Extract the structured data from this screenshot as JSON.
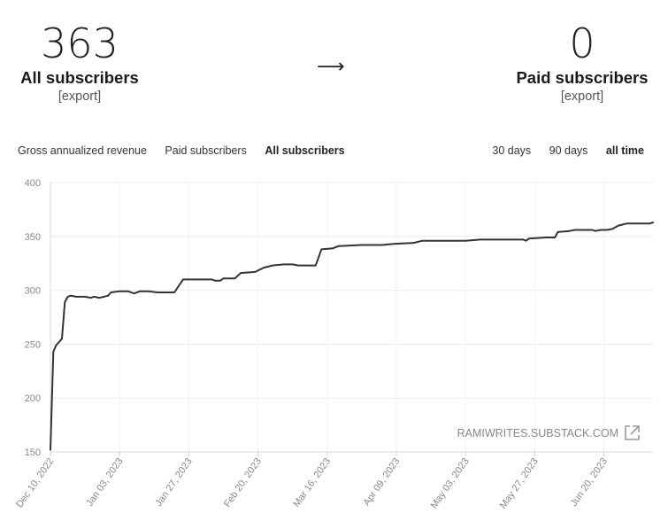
{
  "summary": {
    "all_count": "363",
    "all_label": "All subscribers",
    "all_export": "[export]",
    "arrow": "⟶",
    "paid_count": "0",
    "paid_label": "Paid subscribers",
    "paid_export": "[export]"
  },
  "metric_tabs": [
    {
      "label": "Gross annualized revenue",
      "active": false
    },
    {
      "label": "Paid subscribers",
      "active": false
    },
    {
      "label": "All subscribers",
      "active": true
    }
  ],
  "range_tabs": [
    {
      "label": "30 days",
      "active": false
    },
    {
      "label": "90 days",
      "active": false
    },
    {
      "label": "all time",
      "active": true
    }
  ],
  "watermark": "RAMIWRITES.SUBSTACK.COM",
  "chart_data": {
    "type": "line",
    "x_ticks": [
      "Dec 10, 2022",
      "Jan 03, 2023",
      "Jan 27, 2023",
      "Feb 20, 2023",
      "Mar 16, 2023",
      "Apr 09, 2023",
      "May 03, 2023",
      "May 27, 2023",
      "Jun 20, 2023"
    ],
    "y_ticks": [
      150,
      200,
      250,
      300,
      350,
      400
    ],
    "ylim": [
      150,
      400
    ],
    "xlim": [
      "2022-12-10",
      "2023-07-07"
    ],
    "grid": true,
    "series": [
      {
        "color": "#333333",
        "points": [
          [
            "2022-12-10",
            152
          ],
          [
            "2022-12-11",
            243
          ],
          [
            "2022-12-12",
            249
          ],
          [
            "2022-12-13",
            252
          ],
          [
            "2022-12-14",
            255
          ],
          [
            "2022-12-15",
            289
          ],
          [
            "2022-12-16",
            294
          ],
          [
            "2022-12-17",
            295
          ],
          [
            "2022-12-19",
            294
          ],
          [
            "2022-12-22",
            294
          ],
          [
            "2022-12-24",
            293
          ],
          [
            "2022-12-25",
            294
          ],
          [
            "2022-12-27",
            293
          ],
          [
            "2022-12-30",
            295
          ],
          [
            "2022-12-31",
            298
          ],
          [
            "2023-01-03",
            299
          ],
          [
            "2023-01-06",
            299
          ],
          [
            "2023-01-08",
            297
          ],
          [
            "2023-01-10",
            299
          ],
          [
            "2023-01-13",
            299
          ],
          [
            "2023-01-16",
            298
          ],
          [
            "2023-01-22",
            298
          ],
          [
            "2023-01-25",
            310
          ],
          [
            "2023-02-04",
            310
          ],
          [
            "2023-02-05",
            309
          ],
          [
            "2023-02-07",
            309
          ],
          [
            "2023-02-08",
            311
          ],
          [
            "2023-02-12",
            311
          ],
          [
            "2023-02-14",
            316
          ],
          [
            "2023-02-19",
            317
          ],
          [
            "2023-02-22",
            321
          ],
          [
            "2023-02-25",
            323
          ],
          [
            "2023-03-01",
            324
          ],
          [
            "2023-03-04",
            324
          ],
          [
            "2023-03-06",
            323
          ],
          [
            "2023-03-12",
            323
          ],
          [
            "2023-03-14",
            338
          ],
          [
            "2023-03-18",
            339
          ],
          [
            "2023-03-20",
            341
          ],
          [
            "2023-03-28",
            342
          ],
          [
            "2023-04-04",
            342
          ],
          [
            "2023-04-08",
            343
          ],
          [
            "2023-04-15",
            344
          ],
          [
            "2023-04-18",
            346
          ],
          [
            "2023-04-28",
            346
          ],
          [
            "2023-05-03",
            346
          ],
          [
            "2023-05-08",
            347
          ],
          [
            "2023-05-23",
            347
          ],
          [
            "2023-05-24",
            346
          ],
          [
            "2023-05-25",
            348
          ],
          [
            "2023-05-31",
            349
          ],
          [
            "2023-06-03",
            349
          ],
          [
            "2023-06-04",
            354
          ],
          [
            "2023-06-08",
            355
          ],
          [
            "2023-06-10",
            356
          ],
          [
            "2023-06-16",
            356
          ],
          [
            "2023-06-17",
            355
          ],
          [
            "2023-06-19",
            356
          ],
          [
            "2023-06-21",
            356
          ],
          [
            "2023-06-23",
            357
          ],
          [
            "2023-06-25",
            360
          ],
          [
            "2023-06-28",
            362
          ],
          [
            "2023-07-06",
            362
          ],
          [
            "2023-07-07",
            363
          ]
        ]
      }
    ]
  }
}
